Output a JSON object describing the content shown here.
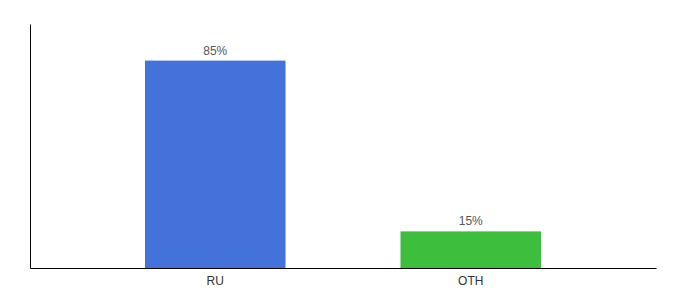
{
  "chart_data": {
    "type": "bar",
    "categories": [
      "RU",
      "OTH"
    ],
    "values": [
      85,
      15
    ],
    "value_labels": [
      "85%",
      "15%"
    ],
    "colors": [
      "#4472db",
      "#3dbf3d"
    ],
    "ylim": [
      0,
      100
    ],
    "data_labels": true,
    "tick_labels": "x",
    "grid": false
  }
}
